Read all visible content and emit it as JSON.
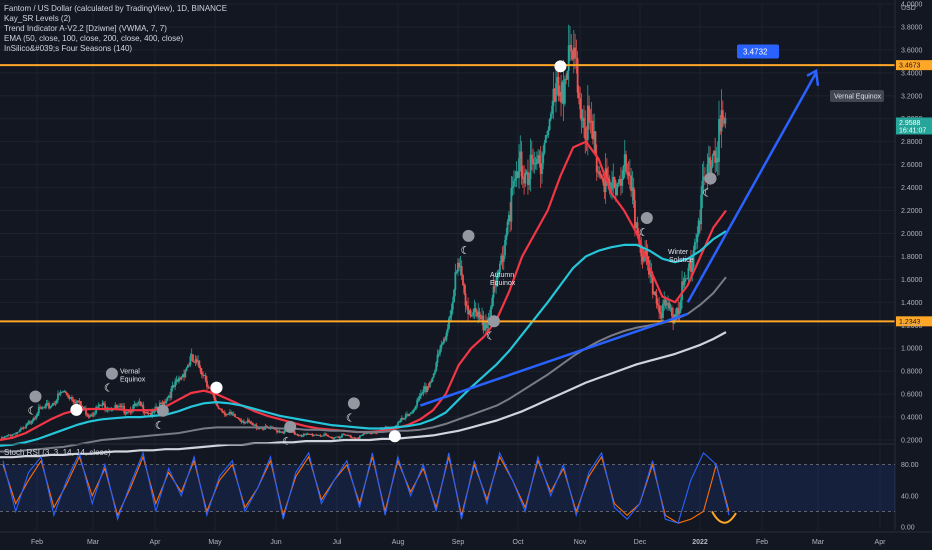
{
  "legend": {
    "title": "Fantom / US Dollar (calculated by TradingView), 1D, BINANCE",
    "ind1": "Kay_SR Levels (2)",
    "ind2": "Trend Indicator A-V2.2 [Dziwne] (VWMA, 7, 7)",
    "ind3": "EMA (50, close, 100, close, 200, close, 400, close)",
    "ind4": "InSilico&#039;s Four Seasons (140)"
  },
  "stoch_label": "Stoch RSI (3, 3, 14, 14, close)",
  "colors": {
    "background": "#131722",
    "level_line": "#ffa726",
    "ema_red": "#f23645",
    "ema_teal": "#26c6da",
    "ema_gray_dark": "#787b86",
    "ema_white": "#d1d4dc",
    "arrow": "#2962ff",
    "candle_up": "#26a69a",
    "candle_down": "#ef5350",
    "stoch_k": "#2962ff",
    "stoch_d": "#ff6d00",
    "stoch_band": "#2962ff"
  },
  "chart_data": {
    "type": "line",
    "symbol": "FTM/USD",
    "x_ticks": [
      "Feb",
      "Mar",
      "Apr",
      "May",
      "Jun",
      "Jul",
      "Aug",
      "Sep",
      "Oct",
      "Nov",
      "Dec",
      "2022",
      "Feb",
      "Mar",
      "Apr"
    ],
    "y_ticks": [
      "4.0000",
      "3.8000",
      "3.6000",
      "3.4000",
      "3.2000",
      "3.0000",
      "2.8000",
      "2.6000",
      "2.4000",
      "2.2000",
      "2.0000",
      "1.8000",
      "1.6000",
      "1.4000",
      "1.2000",
      "1.0000",
      "0.8000",
      "0.6000",
      "0.4000",
      "0.2000"
    ],
    "y_unit": "USD",
    "ylim": [
      0.2,
      4.0
    ],
    "levels": [
      {
        "label": "3.4673",
        "value": 3.4673
      },
      {
        "label": "1.2343",
        "value": 1.2343
      }
    ],
    "current_price": "2.9588",
    "countdown": "16:41:07",
    "target_label": "3.4732",
    "target_value": 3.4732,
    "annotations": [
      {
        "text": "Vernal",
        "text2": "Equinox"
      },
      {
        "text": "Autumn",
        "text2": "Equinox"
      },
      {
        "text": "Winter",
        "text2": "Solstice"
      },
      {
        "text": "Vernal Equinox"
      }
    ],
    "series": [
      {
        "kind": "price_close",
        "values": [
          0.2,
          0.25,
          0.3,
          0.45,
          0.5,
          0.62,
          0.55,
          0.42,
          0.5,
          0.48,
          0.46,
          0.5,
          0.42,
          0.55,
          0.7,
          0.9,
          0.8,
          0.5,
          0.42,
          0.38,
          0.32,
          0.3,
          0.28,
          0.26,
          0.24,
          0.25,
          0.22,
          0.24,
          0.22,
          0.26,
          0.28,
          0.32,
          0.4,
          0.55,
          0.75,
          1.1,
          1.7,
          1.3,
          1.2,
          1.5,
          2.2,
          2.6,
          2.5,
          2.9,
          3.3,
          3.5,
          3.0,
          2.6,
          2.3,
          2.6,
          2.1,
          1.6,
          1.35,
          1.3,
          1.6,
          2.2,
          2.7,
          2.95
        ]
      },
      {
        "kind": "ema",
        "period": 50,
        "values": [
          0.2,
          0.22,
          0.26,
          0.32,
          0.38,
          0.43,
          0.46,
          0.47,
          0.47,
          0.47,
          0.46,
          0.46,
          0.46,
          0.49,
          0.55,
          0.61,
          0.63,
          0.6,
          0.55,
          0.5,
          0.45,
          0.41,
          0.38,
          0.35,
          0.32,
          0.3,
          0.29,
          0.28,
          0.27,
          0.27,
          0.28,
          0.3,
          0.33,
          0.38,
          0.46,
          0.6,
          0.85,
          1.0,
          1.1,
          1.25,
          1.5,
          1.8,
          2.0,
          2.2,
          2.5,
          2.75,
          2.8,
          2.65,
          2.35,
          2.2,
          2.0,
          1.7,
          1.45,
          1.4,
          1.55,
          1.8,
          2.05,
          2.2
        ]
      },
      {
        "kind": "ema",
        "period": 100,
        "values": [
          0.15,
          0.16,
          0.18,
          0.21,
          0.25,
          0.29,
          0.33,
          0.36,
          0.38,
          0.39,
          0.4,
          0.4,
          0.41,
          0.42,
          0.45,
          0.49,
          0.52,
          0.53,
          0.52,
          0.5,
          0.47,
          0.44,
          0.41,
          0.39,
          0.37,
          0.35,
          0.33,
          0.32,
          0.31,
          0.3,
          0.3,
          0.31,
          0.32,
          0.34,
          0.38,
          0.44,
          0.55,
          0.66,
          0.76,
          0.86,
          0.98,
          1.12,
          1.26,
          1.4,
          1.55,
          1.7,
          1.8,
          1.85,
          1.88,
          1.9,
          1.9,
          1.85,
          1.78,
          1.75,
          1.78,
          1.85,
          1.95,
          2.02
        ]
      },
      {
        "kind": "ema",
        "period": 200,
        "values": [
          0.1,
          0.1,
          0.11,
          0.12,
          0.13,
          0.14,
          0.16,
          0.18,
          0.2,
          0.21,
          0.22,
          0.23,
          0.24,
          0.25,
          0.26,
          0.28,
          0.3,
          0.31,
          0.31,
          0.31,
          0.31,
          0.31,
          0.3,
          0.3,
          0.29,
          0.29,
          0.28,
          0.28,
          0.27,
          0.27,
          0.27,
          0.28,
          0.28,
          0.29,
          0.31,
          0.34,
          0.38,
          0.42,
          0.46,
          0.5,
          0.56,
          0.63,
          0.7,
          0.77,
          0.85,
          0.93,
          1.0,
          1.06,
          1.11,
          1.15,
          1.18,
          1.2,
          1.22,
          1.25,
          1.3,
          1.38,
          1.48,
          1.62
        ]
      },
      {
        "kind": "ema",
        "period": 400,
        "values": [
          0.05,
          0.05,
          0.06,
          0.06,
          0.07,
          0.07,
          0.08,
          0.08,
          0.09,
          0.1,
          0.1,
          0.11,
          0.11,
          0.12,
          0.12,
          0.13,
          0.14,
          0.15,
          0.16,
          0.16,
          0.17,
          0.17,
          0.18,
          0.18,
          0.19,
          0.19,
          0.19,
          0.2,
          0.2,
          0.2,
          0.21,
          0.21,
          0.22,
          0.23,
          0.24,
          0.26,
          0.28,
          0.31,
          0.34,
          0.37,
          0.41,
          0.45,
          0.5,
          0.55,
          0.6,
          0.65,
          0.7,
          0.74,
          0.78,
          0.82,
          0.86,
          0.89,
          0.92,
          0.95,
          0.99,
          1.03,
          1.08,
          1.14
        ]
      },
      {
        "kind": "stoch_k",
        "values": [
          85,
          20,
          70,
          90,
          15,
          60,
          95,
          30,
          80,
          10,
          55,
          95,
          20,
          75,
          40,
          90,
          15,
          65,
          85,
          20,
          50,
          90,
          10,
          70,
          95,
          30,
          60,
          85,
          25,
          95,
          15,
          90,
          40,
          80,
          20,
          95,
          10,
          85,
          30,
          95,
          60,
          20,
          90,
          40,
          80,
          15,
          70,
          95,
          25,
          10,
          30,
          85,
          10,
          5,
          60,
          95,
          80,
          15
        ]
      },
      {
        "kind": "stoch_d",
        "values": [
          80,
          30,
          60,
          85,
          25,
          55,
          90,
          40,
          75,
          15,
          50,
          90,
          30,
          70,
          45,
          85,
          20,
          60,
          80,
          25,
          50,
          85,
          15,
          65,
          90,
          35,
          60,
          80,
          30,
          90,
          20,
          85,
          45,
          75,
          25,
          90,
          15,
          80,
          35,
          90,
          60,
          25,
          85,
          45,
          75,
          20,
          65,
          90,
          30,
          15,
          30,
          80,
          15,
          5,
          10,
          20,
          80,
          20
        ]
      }
    ],
    "stoch_ticks": [
      "80.00",
      "40.00",
      "0.00"
    ],
    "stoch_ylim": [
      0,
      100
    ]
  }
}
